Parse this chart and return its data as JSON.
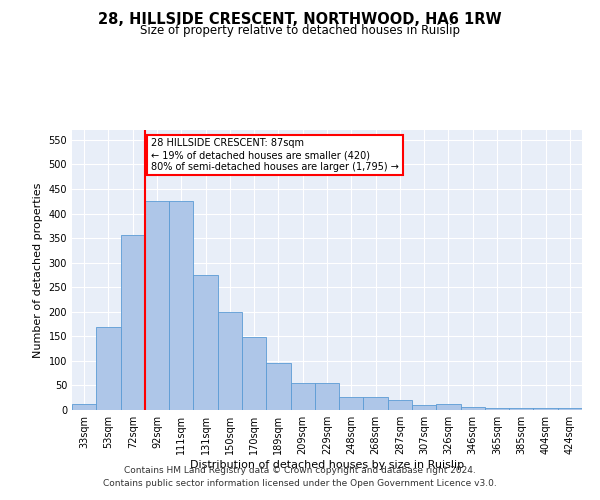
{
  "title": "28, HILLSIDE CRESCENT, NORTHWOOD, HA6 1RW",
  "subtitle": "Size of property relative to detached houses in Ruislip",
  "xlabel": "Distribution of detached houses by size in Ruislip",
  "ylabel": "Number of detached properties",
  "categories": [
    "33sqm",
    "53sqm",
    "72sqm",
    "92sqm",
    "111sqm",
    "131sqm",
    "150sqm",
    "170sqm",
    "189sqm",
    "209sqm",
    "229sqm",
    "248sqm",
    "268sqm",
    "287sqm",
    "307sqm",
    "326sqm",
    "346sqm",
    "365sqm",
    "385sqm",
    "404sqm",
    "424sqm"
  ],
  "values": [
    12,
    168,
    357,
    425,
    425,
    275,
    200,
    148,
    96,
    55,
    55,
    27,
    27,
    20,
    11,
    12,
    7,
    5,
    4,
    4,
    4
  ],
  "bar_color": "#aec6e8",
  "bar_edge_color": "#5b9bd5",
  "vline_color": "red",
  "annotation_text": "28 HILLSIDE CRESCENT: 87sqm\n← 19% of detached houses are smaller (420)\n80% of semi-detached houses are larger (1,795) →",
  "annotation_box_color": "white",
  "annotation_box_edge": "red",
  "ylim": [
    0,
    570
  ],
  "yticks": [
    0,
    50,
    100,
    150,
    200,
    250,
    300,
    350,
    400,
    450,
    500,
    550
  ],
  "footer_line1": "Contains HM Land Registry data © Crown copyright and database right 2024.",
  "footer_line2": "Contains public sector information licensed under the Open Government Licence v3.0.",
  "bg_color": "#e8eef8",
  "grid_color": "#ffffff",
  "title_fontsize": 10.5,
  "subtitle_fontsize": 8.5,
  "tick_fontsize": 7,
  "label_fontsize": 8,
  "footer_fontsize": 6.5
}
